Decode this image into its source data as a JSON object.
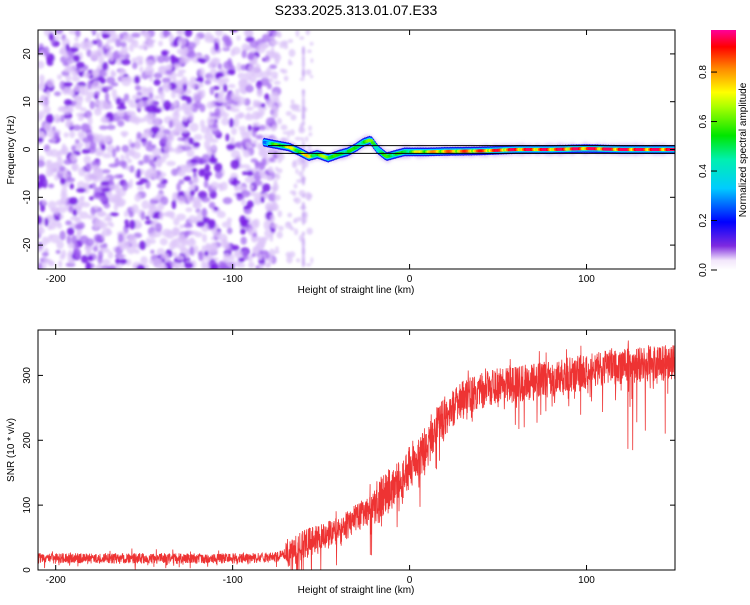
{
  "title": "S233.2025.313.01.07.E33",
  "colorbar": {
    "label": "Normalized spectral amplitude",
    "ticks": [
      "0.0",
      "0.2",
      "0.4",
      "0.6",
      "0.8"
    ],
    "tick_values": [
      0.0,
      0.2,
      0.4,
      0.6,
      0.8
    ],
    "range": [
      0,
      0.97
    ]
  },
  "chart_data": [
    {
      "type": "heatmap",
      "title": "S233.2025.313.01.07.E33",
      "xlabel": "Height of straight line (km)",
      "ylabel": "Frequency (Hz)",
      "xlim": [
        -210,
        150
      ],
      "ylim": [
        -25,
        25
      ],
      "xticks": [
        -200,
        -100,
        0,
        100
      ],
      "xtick_labels": [
        "-200",
        "-100",
        "0",
        "100"
      ],
      "yticks": [
        -20,
        -10,
        0,
        10,
        20
      ],
      "ytick_labels": [
        "-20",
        "-10",
        "0",
        "10",
        "20"
      ],
      "noise_region_x": [
        -210,
        -75
      ],
      "track": {
        "description": "signal track (frequency vs height)",
        "x": [
          -82,
          -75,
          -68,
          -62,
          -57,
          -52,
          -46,
          -40,
          -35,
          -30,
          -26,
          -22,
          -18,
          -13,
          -8,
          -3,
          0,
          5,
          10,
          20,
          40,
          60,
          80,
          100,
          120,
          150
        ],
        "y": [
          1.5,
          1.0,
          0.5,
          -0.5,
          -1.5,
          -1.0,
          -1.8,
          -1.0,
          -0.5,
          0.5,
          1.5,
          2.0,
          0.0,
          -1.5,
          -1.0,
          -0.5,
          -0.5,
          -0.5,
          -0.5,
          -0.4,
          -0.3,
          0.0,
          0.0,
          0.2,
          0.0,
          0.0
        ],
        "amplitude": [
          0.3,
          0.6,
          0.7,
          0.65,
          0.75,
          0.55,
          0.7,
          0.5,
          0.6,
          0.5,
          0.6,
          0.6,
          0.5,
          0.55,
          0.6,
          0.5,
          0.6,
          0.7,
          0.75,
          0.8,
          0.85,
          0.9,
          0.9,
          0.92,
          0.95,
          0.95
        ]
      },
      "reference_lines_hz": [
        0.8,
        -0.8
      ]
    },
    {
      "type": "line",
      "xlabel": "Height of straight line (km)",
      "ylabel": "SNR (10 * v/v)",
      "xlim": [
        -210,
        150
      ],
      "ylim": [
        0,
        370
      ],
      "xticks": [
        -200,
        -100,
        0,
        100
      ],
      "xtick_labels": [
        "-200",
        "-100",
        "0",
        "100"
      ],
      "yticks": [
        0,
        100,
        200,
        300
      ],
      "ytick_labels": [
        "0",
        "100",
        "200",
        "300"
      ],
      "series": [
        {
          "name": "SNR",
          "color": "#ee3333",
          "x": [
            -210,
            -180,
            -150,
            -120,
            -90,
            -75,
            -65,
            -60,
            -55,
            -50,
            -45,
            -40,
            -35,
            -30,
            -25,
            -20,
            -15,
            -10,
            -5,
            0,
            5,
            10,
            15,
            20,
            25,
            30,
            40,
            50,
            60,
            80,
            100,
            120,
            150
          ],
          "y": [
            18,
            18,
            18,
            18,
            18,
            20,
            30,
            40,
            45,
            50,
            55,
            60,
            70,
            80,
            90,
            100,
            115,
            125,
            140,
            160,
            175,
            190,
            215,
            235,
            250,
            265,
            275,
            285,
            285,
            295,
            305,
            315,
            320
          ]
        }
      ]
    }
  ]
}
